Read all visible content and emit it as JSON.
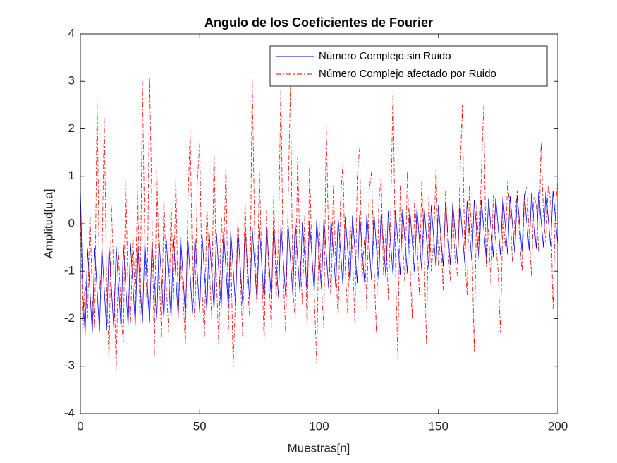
{
  "chart_data": {
    "type": "line",
    "title": "Angulo de los Coeficientes de Fourier",
    "x_label": "Muestras[n]",
    "y_label": "Amplitud[u.a]",
    "legend": "northeast",
    "grid": false,
    "xlim": [
      0,
      200
    ],
    "xticks": [
      0,
      50,
      100,
      150,
      200
    ],
    "ylim": [
      -4,
      4
    ],
    "yticks": [
      -4,
      -3,
      -2,
      -1,
      0,
      1,
      2,
      3,
      4
    ],
    "x": [
      0,
      1,
      2,
      3,
      4,
      5,
      6,
      7,
      8,
      9,
      10,
      11,
      12,
      13,
      14,
      15,
      16,
      17,
      18,
      19,
      20,
      21,
      22,
      23,
      24,
      25,
      26,
      27,
      28,
      29,
      30,
      31,
      32,
      33,
      34,
      35,
      36,
      37,
      38,
      39,
      40,
      41,
      42,
      43,
      44,
      45,
      46,
      47,
      48,
      49,
      50,
      51,
      52,
      53,
      54,
      55,
      56,
      57,
      58,
      59,
      60,
      61,
      62,
      63,
      64,
      65,
      66,
      67,
      68,
      69,
      70,
      71,
      72,
      73,
      74,
      75,
      76,
      77,
      78,
      79,
      80,
      81,
      82,
      83,
      84,
      85,
      86,
      87,
      88,
      89,
      90,
      91,
      92,
      93,
      94,
      95,
      96,
      97,
      98,
      99,
      100,
      101,
      102,
      103,
      104,
      105,
      106,
      107,
      108,
      109,
      110,
      111,
      112,
      113,
      114,
      115,
      116,
      117,
      118,
      119,
      120,
      121,
      122,
      123,
      124,
      125,
      126,
      127,
      128,
      129,
      130,
      131,
      132,
      133,
      134,
      135,
      136,
      137,
      138,
      139,
      140,
      141,
      142,
      143,
      144,
      145,
      146,
      147,
      148,
      149,
      150,
      151,
      152,
      153,
      154,
      155,
      156,
      157,
      158,
      159,
      160,
      161,
      162,
      163,
      164,
      165,
      166,
      167,
      168,
      169,
      170,
      171,
      172,
      173,
      174,
      175,
      176,
      177,
      178,
      179,
      180,
      181,
      182,
      183,
      184,
      185,
      186,
      187,
      188,
      189,
      190,
      191,
      192,
      193,
      194,
      195,
      196,
      197,
      198,
      199,
      200
    ],
    "series": [
      {
        "name": "Número Complejo sin Ruido",
        "color": "#0000ff",
        "linestyle": "solid",
        "values": [
          0.75,
          -1.44,
          -2.33,
          -0.53,
          -1.42,
          -2.3,
          -0.51,
          -1.39,
          -2.27,
          -0.49,
          -1.37,
          -2.24,
          -0.47,
          -1.35,
          -2.22,
          -0.46,
          -1.32,
          -2.19,
          -0.44,
          -1.3,
          -2.16,
          -0.42,
          -1.28,
          -2.13,
          -0.4,
          -1.25,
          -2.1,
          -0.38,
          -1.23,
          -2.07,
          -0.36,
          -1.2,
          -2.05,
          -0.34,
          -1.18,
          -2.02,
          -0.32,
          -1.15,
          -1.99,
          -0.3,
          -1.13,
          -1.96,
          -0.28,
          -1.11,
          -1.93,
          -0.27,
          -1.08,
          -1.9,
          -0.25,
          -1.06,
          -1.87,
          -0.23,
          -1.04,
          -1.85,
          -0.21,
          -1.01,
          -1.82,
          -0.19,
          -0.99,
          -1.79,
          -0.17,
          -0.96,
          -1.76,
          -0.15,
          -0.94,
          -1.73,
          -0.13,
          -0.92,
          -1.7,
          -0.11,
          -0.89,
          -1.67,
          -0.09,
          -0.87,
          -1.65,
          -0.08,
          -0.85,
          -1.62,
          -0.06,
          -0.82,
          -1.59,
          -0.04,
          -0.8,
          -1.56,
          -0.02,
          -0.77,
          -1.53,
          0.0,
          -0.75,
          -1.5,
          0.02,
          -0.73,
          -1.47,
          0.04,
          -0.7,
          -1.45,
          0.06,
          -0.68,
          -1.42,
          0.08,
          -0.66,
          -1.39,
          0.1,
          -0.63,
          -1.36,
          0.11,
          -0.61,
          -1.33,
          0.13,
          -0.58,
          -1.3,
          0.15,
          -0.56,
          -1.27,
          0.17,
          -0.54,
          -1.25,
          0.19,
          -0.51,
          -1.22,
          0.21,
          -0.49,
          -1.19,
          0.23,
          -0.47,
          -1.16,
          0.25,
          -0.44,
          -1.13,
          0.27,
          -0.42,
          -1.1,
          0.29,
          -0.39,
          -1.07,
          0.31,
          -0.37,
          -1.05,
          0.32,
          -0.35,
          -1.02,
          0.34,
          -0.32,
          -0.99,
          0.36,
          -0.3,
          -0.96,
          0.38,
          -0.28,
          -0.93,
          0.4,
          -0.25,
          -0.9,
          0.42,
          -0.23,
          -0.87,
          0.44,
          -0.2,
          -0.85,
          0.46,
          -0.18,
          -0.82,
          0.48,
          -0.16,
          -0.79,
          0.5,
          -0.13,
          -0.76,
          0.51,
          -0.11,
          -0.73,
          0.53,
          -0.09,
          -0.7,
          0.55,
          -0.06,
          -0.67,
          0.57,
          -0.04,
          -0.65,
          0.59,
          -0.01,
          -0.62,
          0.61,
          0.01,
          -0.59,
          0.63,
          0.03,
          -0.56,
          0.65,
          0.06,
          -0.53,
          0.67,
          0.08,
          -0.5,
          0.69,
          0.1,
          -0.47,
          0.7,
          0.12,
          -0.45
        ]
      },
      {
        "name": "Número Complejo afectado por Ruido",
        "color": "#ff0000",
        "linestyle": "dashdot",
        "values": [
          0.5,
          -2.3,
          -1.2,
          -2.0,
          0.3,
          -1.6,
          -2.2,
          2.65,
          -1.4,
          -0.9,
          2.25,
          -1.3,
          -2.9,
          0.4,
          -1.1,
          -3.1,
          -0.6,
          -1.9,
          -2.5,
          1.0,
          -1.5,
          -2.1,
          -0.2,
          -1.7,
          0.8,
          -2.2,
          3.0,
          -0.5,
          -1.8,
          3.08,
          0.2,
          -2.8,
          1.2,
          -1.0,
          -2.4,
          0.6,
          -1.3,
          -2.3,
          0.5,
          -1.6,
          1.0,
          -2.0,
          -0.7,
          -1.5,
          -2.55,
          0.3,
          2.0,
          -1.2,
          -2.1,
          0.9,
          1.7,
          -1.4,
          -2.4,
          0.4,
          -0.9,
          -2.0,
          1.6,
          -1.1,
          -2.6,
          0.2,
          -0.8,
          1.3,
          -2.3,
          -0.4,
          -3.05,
          -1.5,
          0.1,
          -1.0,
          -2.4,
          0.5,
          -1.3,
          -2.0,
          3.08,
          -0.2,
          -1.8,
          1.1,
          -0.9,
          -2.5,
          0.3,
          -1.2,
          -2.2,
          0.6,
          -1.6,
          -0.3,
          2.95,
          -1.1,
          -2.3,
          0.4,
          2.9,
          -1.4,
          -2.0,
          1.4,
          -0.6,
          -1.7,
          0.2,
          -2.3,
          1.2,
          -0.7,
          -1.5,
          -2.95,
          0.1,
          -1.3,
          -2.2,
          2.1,
          -0.4,
          -1.6,
          0.8,
          -0.9,
          -2.0,
          0.5,
          1.3,
          -1.0,
          -1.9,
          0.0,
          -0.6,
          -2.1,
          1.0,
          1.6,
          -1.2,
          -0.3,
          -1.8,
          0.7,
          1.1,
          -0.8,
          -2.3,
          0.4,
          1.0,
          -1.1,
          -0.1,
          -1.6,
          0.2,
          2.9,
          -0.9,
          -2.85,
          0.8,
          -0.4,
          -1.3,
          1.1,
          -0.7,
          -2.0,
          0.5,
          -0.3,
          -1.5,
          0.9,
          -0.6,
          -2.55,
          0.6,
          -1.0,
          -0.4,
          1.2,
          -0.9,
          -0.2,
          -1.4,
          0.7,
          -0.5,
          -1.2,
          0.3,
          -0.8,
          -1.1,
          0.9,
          2.5,
          -0.6,
          -1.5,
          0.8,
          -0.3,
          -2.7,
          0.4,
          -0.6,
          1.1,
          2.5,
          -0.9,
          -0.1,
          -1.3,
          0.6,
          -0.4,
          -1.0,
          -2.3,
          0.2,
          -0.5,
          0.9,
          0.3,
          -0.8,
          0.1,
          0.7,
          -0.3,
          -1.0,
          0.5,
          0.8,
          -0.2,
          -1.1,
          0.6,
          0.4,
          -0.6,
          1.7,
          0.2,
          -0.4,
          0.8,
          0.5,
          -1.8,
          0.3,
          0.9
        ]
      }
    ]
  }
}
